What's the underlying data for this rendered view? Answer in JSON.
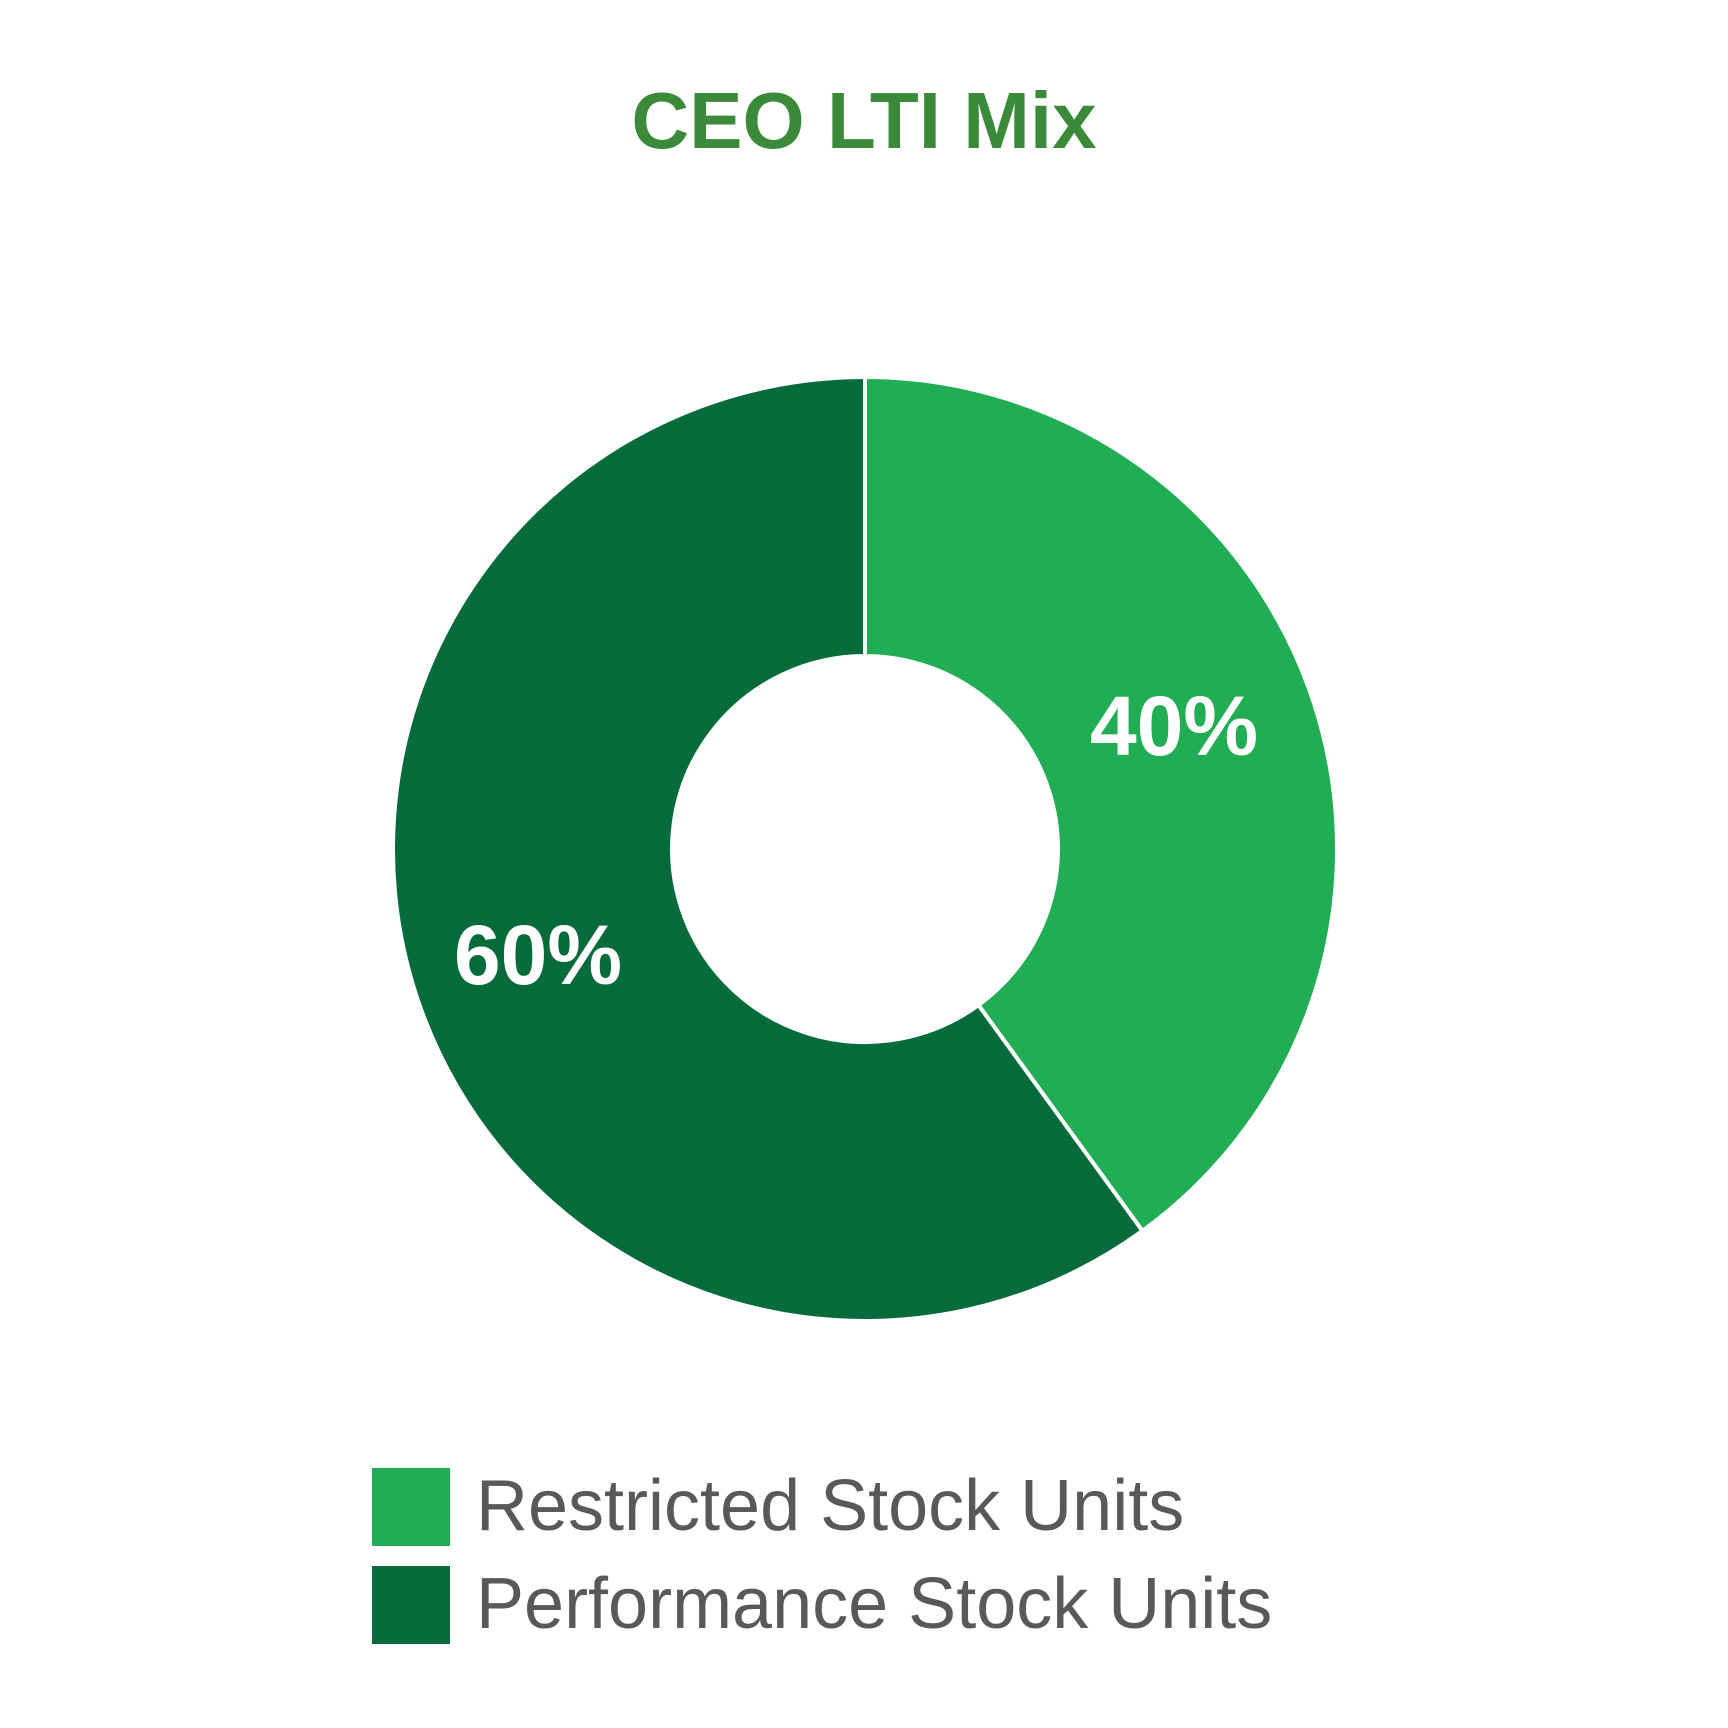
{
  "chart_data": {
    "type": "donut",
    "title": "CEO LTI Mix",
    "categories": [
      "Restricted Stock Units",
      "Performance Stock Units"
    ],
    "values": [
      40,
      60
    ],
    "value_labels": [
      "40%",
      "60%"
    ],
    "colors": [
      "#21ad53",
      "#066b3a"
    ]
  }
}
